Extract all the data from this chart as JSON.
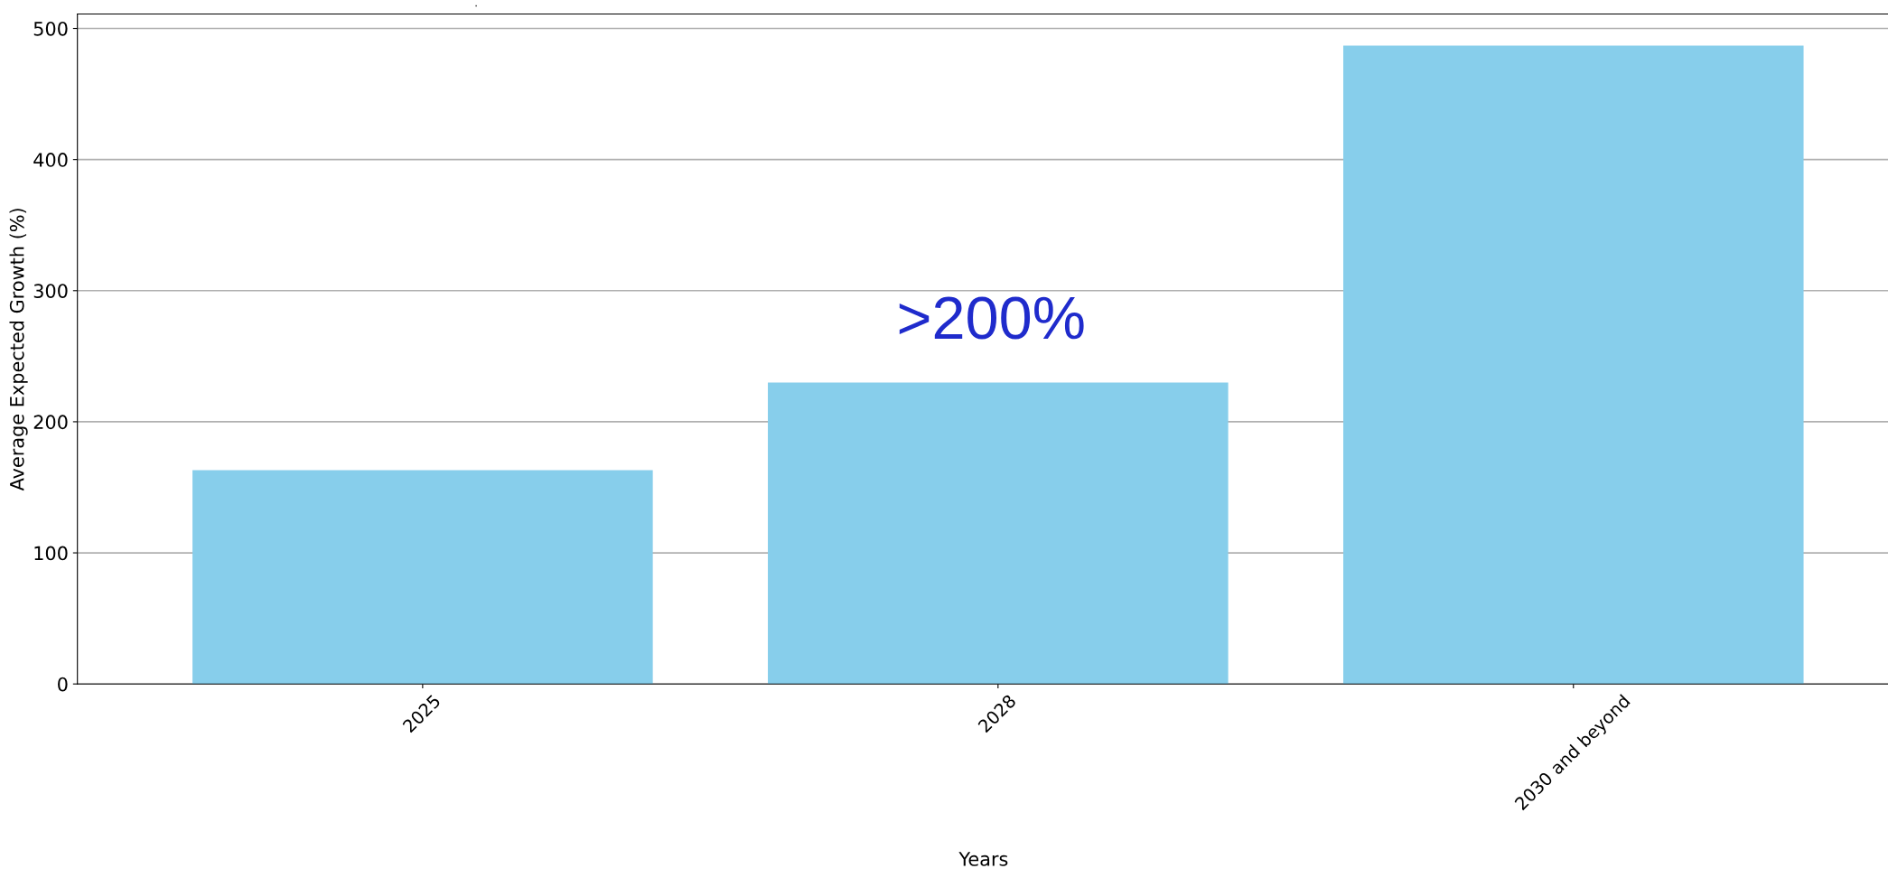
{
  "chart_data": {
    "type": "bar",
    "title": ".",
    "xlabel": "Years",
    "ylabel": "Average Expected Growth (%)",
    "categories": [
      "2025",
      "2028",
      "2030 and beyond"
    ],
    "values": [
      163,
      230,
      487
    ],
    "color": "#87ceeb",
    "ylim": [
      0,
      511
    ],
    "yticks": [
      0,
      100,
      200,
      300,
      400,
      500
    ],
    "grid": "y",
    "annotations": [
      ">200%"
    ]
  }
}
